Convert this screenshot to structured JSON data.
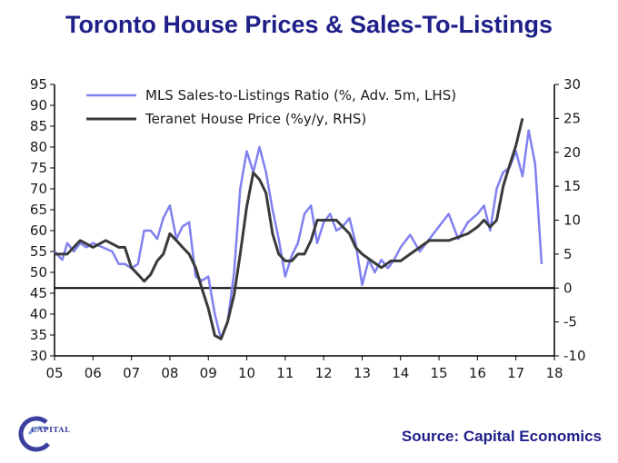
{
  "page": {
    "title": "Toronto House Prices & Sales-To-Listings",
    "source": "Source: Capital Economics",
    "logo_text": "CAPITAL",
    "colors": {
      "title": "#1f1f8a",
      "source": "#1f1f8a",
      "logo_blue": "#3b3f9e",
      "logo_accent": "#8aa0d8"
    }
  },
  "chart_data": {
    "type": "line",
    "grid": false,
    "legend_position": "top-left",
    "x_ticks": [
      "05",
      "06",
      "07",
      "08",
      "09",
      "10",
      "11",
      "12",
      "13",
      "14",
      "15",
      "16",
      "17",
      "18"
    ],
    "x_range": [
      2005,
      2018
    ],
    "y_left": {
      "range": [
        30,
        95
      ],
      "ticks": [
        "95",
        "90",
        "85",
        "80",
        "75",
        "70",
        "65",
        "60",
        "55",
        "50",
        "45",
        "40",
        "35",
        "30"
      ]
    },
    "y_right": {
      "range": [
        -10,
        30
      ],
      "ticks": [
        "30",
        "25",
        "20",
        "15",
        "10",
        "5",
        "0",
        "-5",
        "-10"
      ]
    },
    "zero_line_right": 0,
    "series": [
      {
        "name": "MLS Sales-to-Listings Ratio (%, Adv. 5m, LHS)",
        "axis": "left",
        "color": "#8080f0",
        "x": [
          2005.0,
          2005.2,
          2005.33,
          2005.5,
          2005.67,
          2005.83,
          2006.0,
          2006.25,
          2006.5,
          2006.67,
          2006.83,
          2007.0,
          2007.17,
          2007.33,
          2007.5,
          2007.67,
          2007.83,
          2008.0,
          2008.17,
          2008.33,
          2008.5,
          2008.67,
          2008.83,
          2009.0,
          2009.17,
          2009.33,
          2009.5,
          2009.67,
          2009.83,
          2010.0,
          2010.17,
          2010.33,
          2010.5,
          2010.67,
          2010.83,
          2011.0,
          2011.17,
          2011.33,
          2011.5,
          2011.67,
          2011.83,
          2012.0,
          2012.17,
          2012.33,
          2012.5,
          2012.67,
          2012.83,
          2013.0,
          2013.17,
          2013.33,
          2013.5,
          2013.67,
          2013.83,
          2014.0,
          2014.25,
          2014.5,
          2014.75,
          2015.0,
          2015.25,
          2015.5,
          2015.75,
          2016.0,
          2016.17,
          2016.33,
          2016.5,
          2016.67,
          2016.83,
          2017.0,
          2017.17,
          2017.33,
          2017.5,
          2017.67
        ],
        "values": [
          55,
          53,
          57,
          55,
          57,
          56,
          57,
          56,
          55,
          52,
          52,
          51,
          52,
          60,
          60,
          58,
          63,
          66,
          58,
          61,
          62,
          49,
          48,
          49,
          40,
          34,
          38,
          50,
          70,
          79,
          74,
          80,
          74,
          65,
          58,
          49,
          54,
          57,
          64,
          66,
          57,
          62,
          64,
          60,
          61,
          63,
          57,
          47,
          53,
          50,
          53,
          51,
          53,
          56,
          59,
          55,
          58,
          61,
          64,
          58,
          62,
          64,
          66,
          60,
          70,
          74,
          75,
          79,
          73,
          84,
          76,
          52
        ]
      },
      {
        "name": "Teranet House Price (%y/y, RHS)",
        "axis": "right",
        "color": "#3a3a3a",
        "x": [
          2005.0,
          2005.33,
          2005.67,
          2006.0,
          2006.33,
          2006.67,
          2006.83,
          2007.0,
          2007.17,
          2007.33,
          2007.5,
          2007.67,
          2007.83,
          2008.0,
          2008.17,
          2008.33,
          2008.5,
          2008.67,
          2008.83,
          2009.0,
          2009.17,
          2009.33,
          2009.5,
          2009.67,
          2009.83,
          2010.0,
          2010.17,
          2010.33,
          2010.5,
          2010.67,
          2010.83,
          2011.0,
          2011.17,
          2011.33,
          2011.5,
          2011.67,
          2011.83,
          2012.0,
          2012.33,
          2012.67,
          2012.83,
          2013.0,
          2013.25,
          2013.5,
          2013.75,
          2014.0,
          2014.25,
          2014.5,
          2014.75,
          2015.0,
          2015.25,
          2015.5,
          2015.75,
          2016.0,
          2016.17,
          2016.33,
          2016.5,
          2016.67,
          2016.83,
          2017.0,
          2017.17
        ],
        "values": [
          5,
          5,
          7,
          6,
          7,
          6,
          6,
          3,
          2,
          1,
          2,
          4,
          5,
          8,
          7,
          6,
          5,
          3,
          0,
          -3,
          -7,
          -7.5,
          -5,
          -1,
          5,
          12,
          17,
          16,
          14,
          8,
          5,
          4,
          4,
          5,
          5,
          7,
          10,
          10,
          10,
          8,
          6,
          5,
          4,
          3,
          4,
          4,
          5,
          6,
          7,
          7,
          7,
          7.5,
          8,
          9,
          10,
          9,
          10,
          15,
          18,
          21,
          25
        ]
      }
    ]
  }
}
